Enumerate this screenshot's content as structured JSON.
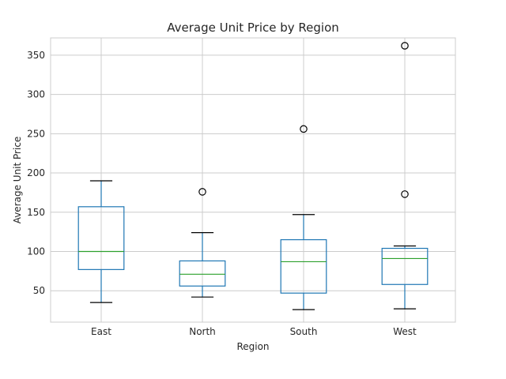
{
  "chart_data": {
    "type": "box",
    "title": "Average Unit Price by Region",
    "xlabel": "Region",
    "ylabel": "Average Unit Price",
    "ylim": [
      10,
      372
    ],
    "yticks": [
      50,
      100,
      150,
      200,
      250,
      300,
      350
    ],
    "grid": true,
    "categories": [
      "East",
      "North",
      "South",
      "West"
    ],
    "boxes": [
      {
        "category": "East",
        "whisker_low": 35,
        "q1": 77,
        "median": 100,
        "q3": 157,
        "whisker_high": 190,
        "outliers": []
      },
      {
        "category": "North",
        "whisker_low": 42,
        "q1": 56,
        "median": 71,
        "q3": 88,
        "whisker_high": 124,
        "outliers": [
          176
        ]
      },
      {
        "category": "South",
        "whisker_low": 26,
        "q1": 47,
        "median": 87,
        "q3": 115,
        "whisker_high": 147,
        "outliers": [
          256
        ]
      },
      {
        "category": "West",
        "whisker_low": 27,
        "q1": 58,
        "median": 91,
        "q3": 104,
        "whisker_high": 107,
        "outliers": [
          173,
          362
        ]
      }
    ],
    "colors": {
      "box": "#1f77b4",
      "median": "#2ca02c",
      "whisker_cap": "#000000",
      "outlier": "#000000",
      "grid": "#cccccc",
      "frame": "#cccccc"
    }
  }
}
